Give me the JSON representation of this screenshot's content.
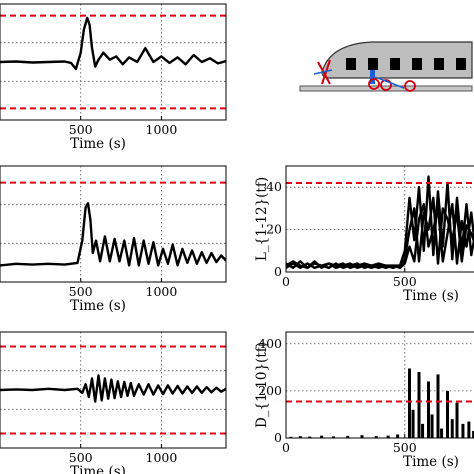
{
  "chart_data": [
    {
      "type": "line",
      "panel": "left-top",
      "xlabel": "Time (s)",
      "xticks": [
        500,
        1000
      ],
      "xlim": [
        0,
        1400
      ],
      "ylim": [
        -1.25,
        1.25
      ],
      "grid": true,
      "threshold_lines": [
        1,
        -1
      ],
      "series": [
        {
          "x": [
            0,
            100,
            200,
            300,
            400,
            440,
            470,
            500,
            520,
            540,
            555,
            570,
            590,
            610,
            640,
            680,
            720,
            760,
            800,
            850,
            900,
            950,
            1000,
            1050,
            1100,
            1150,
            1200,
            1250,
            1300,
            1350,
            1400
          ],
          "y": [
            0.0,
            0.01,
            -0.01,
            0.0,
            0.01,
            -0.02,
            -0.15,
            0.2,
            0.7,
            0.95,
            0.8,
            0.3,
            -0.1,
            0.05,
            0.2,
            0.05,
            0.12,
            -0.05,
            0.1,
            0.0,
            0.3,
            0.0,
            0.12,
            -0.02,
            0.1,
            -0.05,
            0.15,
            0.0,
            0.08,
            -0.03,
            0.02
          ]
        }
      ]
    },
    {
      "type": "diagram",
      "panel": "right-top"
    },
    {
      "type": "line",
      "panel": "left-middle",
      "xlabel": "Time (s)",
      "xticks": [
        500,
        1000
      ],
      "xlim": [
        0,
        1400
      ],
      "ylim": [
        -0.2,
        1.2
      ],
      "grid": true,
      "threshold_lines": [
        1.0
      ],
      "series": [
        {
          "x": [
            0,
            100,
            200,
            300,
            400,
            480,
            510,
            530,
            545,
            560,
            575,
            595,
            620,
            650,
            680,
            710,
            740,
            770,
            800,
            830,
            860,
            890,
            920,
            950,
            980,
            1010,
            1040,
            1070,
            1100,
            1130,
            1160,
            1190,
            1220,
            1250,
            1280,
            1310,
            1340,
            1370,
            1400
          ],
          "y": [
            0.0,
            0.02,
            0.01,
            0.02,
            0.01,
            0.03,
            0.3,
            0.7,
            0.75,
            0.55,
            0.15,
            0.3,
            0.05,
            0.35,
            0.05,
            0.32,
            0.05,
            0.3,
            0.0,
            0.33,
            0.0,
            0.3,
            0.02,
            0.28,
            0.0,
            0.2,
            0.02,
            0.25,
            0.0,
            0.2,
            0.03,
            0.18,
            0.02,
            0.16,
            0.03,
            0.15,
            0.04,
            0.12,
            0.06
          ]
        }
      ]
    },
    {
      "type": "line",
      "panel": "right-middle",
      "xlabel": "Time (s)",
      "ylabel": "L_{1-12}(tf)",
      "xticks": [
        0,
        500
      ],
      "yticks": [
        0,
        20,
        40
      ],
      "xlim": [
        0,
        800
      ],
      "ylim": [
        0,
        50
      ],
      "grid": true,
      "threshold_lines": [
        42
      ],
      "series": [
        {
          "x": [
            0,
            30,
            60,
            90,
            120,
            150,
            180,
            210,
            240,
            270,
            300,
            330,
            360,
            390,
            420,
            450,
            480,
            500,
            520,
            540,
            560,
            580,
            600,
            620,
            640,
            660,
            680,
            700,
            720,
            740,
            760,
            780,
            800
          ],
          "y": [
            2,
            4,
            2,
            4,
            2,
            3,
            4,
            2,
            3,
            4,
            2,
            3,
            2,
            3,
            2,
            3,
            3,
            10,
            35,
            15,
            40,
            10,
            45,
            8,
            38,
            12,
            42,
            6,
            35,
            10,
            32,
            8,
            20
          ]
        },
        {
          "x": [
            0,
            30,
            60,
            90,
            120,
            150,
            180,
            210,
            240,
            270,
            300,
            330,
            360,
            390,
            420,
            450,
            480,
            500,
            520,
            540,
            560,
            580,
            600,
            620,
            640,
            660,
            680,
            700,
            720,
            740,
            760,
            780,
            800
          ],
          "y": [
            4,
            2,
            5,
            2,
            4,
            3,
            2,
            4,
            2,
            3,
            4,
            2,
            3,
            2,
            3,
            2,
            3,
            6,
            20,
            30,
            5,
            28,
            20,
            35,
            4,
            30,
            25,
            15,
            28,
            5,
            22,
            18,
            12
          ]
        },
        {
          "x": [
            0,
            30,
            60,
            90,
            120,
            150,
            180,
            210,
            240,
            270,
            300,
            330,
            360,
            390,
            420,
            450,
            480,
            500,
            520,
            540,
            560,
            580,
            600,
            620,
            640,
            660,
            680,
            700,
            720,
            740,
            760,
            780,
            800
          ],
          "y": [
            3,
            5,
            3,
            2,
            5,
            2,
            4,
            3,
            4,
            2,
            3,
            4,
            3,
            4,
            3,
            3,
            2,
            4,
            12,
            5,
            25,
            32,
            12,
            20,
            30,
            5,
            18,
            32,
            4,
            24,
            12,
            28,
            8
          ]
        }
      ]
    },
    {
      "type": "line",
      "panel": "left-bottom",
      "xlabel": "Time (s)",
      "xticks": [
        500,
        1000
      ],
      "xlim": [
        0,
        1400
      ],
      "ylim": [
        -1.0,
        1.0
      ],
      "grid": true,
      "threshold_lines": [
        0.75,
        -0.75
      ],
      "series": [
        {
          "x": [
            0,
            100,
            200,
            300,
            400,
            480,
            510,
            530,
            550,
            570,
            590,
            610,
            630,
            650,
            670,
            690,
            710,
            730,
            750,
            770,
            790,
            810,
            830,
            860,
            890,
            920,
            950,
            980,
            1010,
            1040,
            1070,
            1100,
            1130,
            1160,
            1190,
            1220,
            1250,
            1280,
            1310,
            1340,
            1370,
            1400
          ],
          "y": [
            0.0,
            0.01,
            0.0,
            0.02,
            0.0,
            0.02,
            -0.05,
            0.1,
            -0.12,
            0.2,
            -0.2,
            0.25,
            -0.18,
            0.2,
            -0.15,
            0.18,
            -0.14,
            0.15,
            -0.12,
            0.14,
            -0.1,
            0.12,
            -0.1,
            0.1,
            -0.08,
            0.1,
            -0.08,
            0.08,
            -0.07,
            0.08,
            -0.06,
            0.07,
            -0.06,
            0.06,
            -0.05,
            0.06,
            -0.05,
            0.05,
            -0.04,
            0.04,
            -0.03,
            0.02
          ]
        }
      ]
    },
    {
      "type": "bar",
      "panel": "right-bottom",
      "xlabel": "Time (s)",
      "ylabel": "D_{1-10}(tf)",
      "xticks": [
        0,
        500
      ],
      "yticks": [
        0,
        200,
        400
      ],
      "xlim": [
        0,
        800
      ],
      "ylim": [
        0,
        450
      ],
      "grid": true,
      "threshold_lines": [
        155
      ],
      "series": [
        {
          "x": [
            20,
            60,
            100,
            150,
            200,
            260,
            320,
            380,
            430,
            470,
            520,
            535,
            560,
            575,
            600,
            615,
            640,
            655,
            680,
            700,
            720,
            745,
            770,
            790
          ],
          "y": [
            5,
            8,
            6,
            10,
            7,
            9,
            12,
            8,
            10,
            15,
            295,
            120,
            280,
            60,
            240,
            100,
            270,
            40,
            200,
            80,
            150,
            60,
            70,
            30
          ]
        }
      ]
    }
  ]
}
